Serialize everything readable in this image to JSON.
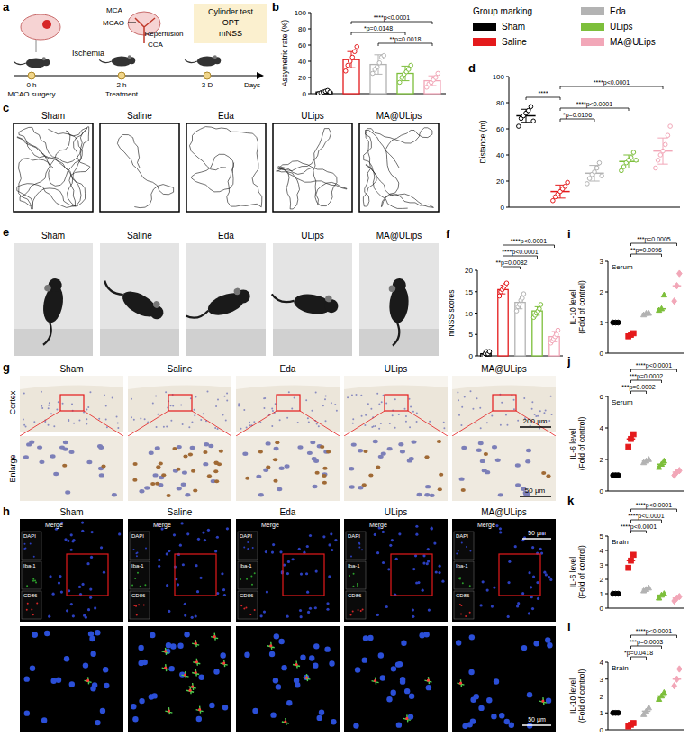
{
  "group_legend": {
    "title": "Group marking",
    "items": [
      {
        "name": "Sham",
        "color": "#000000",
        "marker": "circle"
      },
      {
        "name": "Saline",
        "color": "#e41a1c",
        "marker": "square"
      },
      {
        "name": "Eda",
        "color": "#b3b3b3",
        "marker": "triangle"
      },
      {
        "name": "ULips",
        "color": "#7dbf3b",
        "marker": "triangle"
      },
      {
        "name": "MA@ULips",
        "color": "#f2a7b8",
        "marker": "diamond"
      }
    ]
  },
  "schematic": {
    "letter": "a",
    "ischemia": "Ischemia",
    "vessels": [
      "MCA",
      "MCAO",
      "CCA"
    ],
    "reperfusion": "Reperfusion",
    "tests": [
      "Cylinder test",
      "OPT",
      "mNSS"
    ],
    "times": [
      "0 h",
      "2 h",
      "3 D"
    ],
    "events": [
      "MCAO surgery",
      "Treatment"
    ],
    "time_unit": "Days"
  },
  "tracks": {
    "letter": "c",
    "labels": [
      "Sham",
      "Saline",
      "Eda",
      "ULips",
      "MA@ULips"
    ]
  },
  "photos": {
    "letter": "e",
    "labels": [
      "Sham",
      "Saline",
      "Eda",
      "ULips",
      "MA@ULips"
    ]
  },
  "ihc": {
    "letter": "g",
    "rows": [
      "Cortex",
      "Enlarge"
    ],
    "labels": [
      "Sham",
      "Saline",
      "Eda",
      "ULips",
      "MA@ULips"
    ],
    "scale_bars": [
      "200 µm",
      "50 µm"
    ]
  },
  "fluorescence": {
    "letter": "h",
    "labels": [
      "Sham",
      "Saline",
      "Eda",
      "ULips",
      "MA@ULips"
    ],
    "merge": "Merge",
    "channels": [
      "DAPI",
      "Iba-1",
      "CD86"
    ],
    "scale_bars": [
      "50 µm",
      "50 µm"
    ]
  },
  "chart_data": [
    {
      "letter": "b",
      "type": "bar",
      "y_label": [
        "Assymetric rate (%)"
      ],
      "categories": [
        null,
        null,
        null,
        null,
        null
      ],
      "values": [
        2,
        42,
        36,
        25,
        16
      ],
      "errors": [
        1.5,
        10,
        12,
        9,
        6
      ],
      "points": [
        [
          0,
          1,
          2,
          3,
          4,
          2
        ],
        [
          28,
          35,
          40,
          45,
          52,
          58
        ],
        [
          25,
          30,
          33,
          38,
          45,
          47
        ],
        [
          14,
          20,
          24,
          27,
          30,
          35
        ],
        [
          8,
          12,
          14,
          17,
          20,
          25
        ]
      ],
      "ylim": [
        0,
        100
      ],
      "yticks": [
        0,
        20,
        40,
        60,
        80,
        100
      ],
      "tick_labels": "y",
      "marker": "circle-open",
      "comparisons": [
        {
          "from": 1,
          "to": 4,
          "label": "****p<0.0001"
        },
        {
          "from": 1,
          "to": 3,
          "label": "*p=0.0148"
        },
        {
          "from": 2,
          "to": 4,
          "label": "**p=0.0018"
        }
      ]
    },
    {
      "letter": "d",
      "type": "dot",
      "y_label": [
        "Distance (m)"
      ],
      "categories": [
        null,
        null,
        null,
        null,
        null
      ],
      "values": [
        70,
        12,
        26,
        35,
        43
      ],
      "errors": [
        5,
        5,
        6,
        5,
        10
      ],
      "points": [
        [
          62,
          68,
          70,
          72,
          74,
          77,
          66
        ],
        [
          5,
          8,
          10,
          12,
          14,
          16,
          19
        ],
        [
          18,
          22,
          25,
          27,
          30,
          34,
          24
        ],
        [
          28,
          31,
          34,
          36,
          38,
          42,
          36
        ],
        [
          30,
          36,
          40,
          43,
          48,
          55,
          62
        ]
      ],
      "ylim": [
        0,
        100
      ],
      "yticks": [
        0,
        20,
        40,
        60,
        80,
        100
      ],
      "tick_labels": "y",
      "marker": "circle-open",
      "comparisons": [
        {
          "from": 1,
          "to": 4,
          "label": "****p<0.0001"
        },
        {
          "from": 0,
          "to": 1,
          "label": "****"
        },
        {
          "from": 1,
          "to": 3,
          "label": "****p<0.0001"
        },
        {
          "from": 1,
          "to": 2,
          "label": "*p=0.0106"
        }
      ]
    },
    {
      "letter": "f",
      "type": "bar",
      "y_label": [
        "mNSS scores"
      ],
      "categories": [
        null,
        null,
        null,
        null,
        null
      ],
      "values": [
        0.5,
        15.5,
        12.5,
        10.5,
        4.5
      ],
      "errors": [
        0.5,
        1,
        1.5,
        1,
        1.2
      ],
      "points": [
        [
          0,
          0,
          0.5,
          1,
          0.5,
          1
        ],
        [
          14,
          15,
          15.5,
          16,
          16.5,
          17
        ],
        [
          10.5,
          11.5,
          12,
          13,
          13.5,
          14.5
        ],
        [
          9,
          9.5,
          10,
          10.5,
          11,
          12
        ],
        [
          3,
          3.5,
          4,
          4.5,
          5,
          6
        ]
      ],
      "ylim": [
        0,
        20
      ],
      "yticks": [
        0,
        5,
        10,
        15,
        20
      ],
      "tick_labels": "y",
      "marker": "circle-open",
      "comparisons": [
        {
          "from": 1,
          "to": 4,
          "label": "****p<0.0001"
        },
        {
          "from": 1,
          "to": 3,
          "label": "****p<0.0001"
        },
        {
          "from": 1,
          "to": 2,
          "label": "**p=0.0082"
        }
      ]
    },
    {
      "letter": "i",
      "type": "dot",
      "y_label": [
        "IL-10 level",
        "(Fold of control)"
      ],
      "inset": "Serum",
      "categories": [
        null,
        null,
        null,
        null,
        null
      ],
      "values": [
        1,
        0.6,
        1.3,
        1.45,
        2.2
      ],
      "points": [
        [
          1,
          1,
          1
        ],
        [
          0.55,
          0.6,
          0.65
        ],
        [
          1.25,
          1.3,
          1.3
        ],
        [
          1.4,
          1.45,
          1.9
        ],
        [
          1.7,
          2.2,
          2.6
        ]
      ],
      "ylim": [
        0,
        3
      ],
      "yticks": [
        0,
        1,
        2,
        3
      ],
      "tick_labels": "y",
      "marker": "shape",
      "comparisons": [
        {
          "from": 1,
          "to": 4,
          "label": "***p=0.0005"
        },
        {
          "from": 1,
          "to": 3,
          "label": "**p=0.0096"
        }
      ]
    },
    {
      "letter": "j",
      "type": "dot",
      "y_label": [
        "IL-6 level",
        "(Fold of control)"
      ],
      "inset": "Serum",
      "categories": [
        null,
        null,
        null,
        null,
        null
      ],
      "values": [
        1,
        3.3,
        1.9,
        1.7,
        1.2
      ],
      "points": [
        [
          1,
          1,
          1
        ],
        [
          2.8,
          3.3,
          3.6
        ],
        [
          1.8,
          1.9,
          2.0
        ],
        [
          1.5,
          1.7,
          1.9
        ],
        [
          1.0,
          1.2,
          1.3
        ]
      ],
      "ylim": [
        0,
        6
      ],
      "yticks": [
        0,
        2,
        4,
        6
      ],
      "tick_labels": "y",
      "marker": "shape",
      "comparisons": [
        {
          "from": 1,
          "to": 4,
          "label": "****p<0.0001"
        },
        {
          "from": 1,
          "to": 3,
          "label": "***p=0.0002"
        },
        {
          "from": 1,
          "to": 2,
          "label": "***p=0.0002"
        }
      ]
    },
    {
      "letter": "k",
      "type": "dot",
      "y_label": [
        "IL-6 level",
        "(Fold of control)"
      ],
      "inset": "Brain",
      "categories": [
        null,
        null,
        null,
        null,
        null
      ],
      "values": [
        1,
        3.3,
        1.3,
        0.9,
        0.7
      ],
      "points": [
        [
          1,
          1,
          1
        ],
        [
          2.8,
          3.3,
          3.7
        ],
        [
          1.2,
          1.3,
          1.4
        ],
        [
          0.7,
          0.9,
          1.0
        ],
        [
          0.5,
          0.7,
          0.8
        ]
      ],
      "ylim": [
        0,
        5
      ],
      "yticks": [
        0,
        1,
        2,
        3,
        4,
        5
      ],
      "tick_labels": "y",
      "marker": "shape",
      "comparisons": [
        {
          "from": 1,
          "to": 4,
          "label": "****p<0.0001"
        },
        {
          "from": 1,
          "to": 3,
          "label": "****p<0.0001"
        },
        {
          "from": 1,
          "to": 2,
          "label": "****p<0.0001"
        }
      ]
    },
    {
      "letter": "l",
      "type": "dot",
      "y_label": [
        "IL-10 level",
        "(Fold of control)"
      ],
      "inset": "Brain",
      "categories": [
        null,
        null,
        null,
        null,
        null
      ],
      "values": [
        1,
        0.3,
        1.1,
        2.0,
        3.0
      ],
      "points": [
        [
          1,
          1,
          1
        ],
        [
          0.2,
          0.3,
          0.4
        ],
        [
          0.9,
          1.1,
          1.3
        ],
        [
          1.8,
          2.0,
          2.2
        ],
        [
          2.6,
          3.0,
          3.6
        ]
      ],
      "ylim": [
        0,
        4
      ],
      "yticks": [
        0,
        1,
        2,
        3,
        4
      ],
      "tick_labels": "y",
      "marker": "shape",
      "comparisons": [
        {
          "from": 1,
          "to": 4,
          "label": "****p<0.0001"
        },
        {
          "from": 1,
          "to": 3,
          "label": "***p=0.0003"
        },
        {
          "from": 1,
          "to": 2,
          "label": "*p=0.0418"
        }
      ]
    }
  ]
}
